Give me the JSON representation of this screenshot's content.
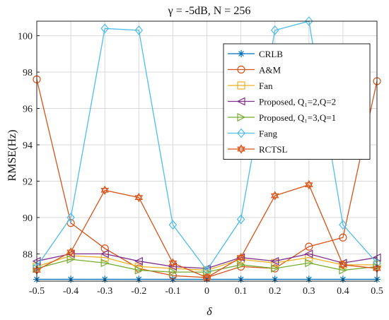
{
  "chart_data": {
    "type": "line",
    "title": "γ = -5dB, N = 256",
    "xlabel": "δ",
    "ylabel": "RMSE(Hz)",
    "x": [
      -0.5,
      -0.4,
      -0.3,
      -0.2,
      -0.1,
      0,
      0.1,
      0.2,
      0.3,
      0.4,
      0.5
    ],
    "xlim": [
      -0.5,
      0.5
    ],
    "ylim": [
      86.5,
      100.8
    ],
    "x_ticks": [
      "-0.5",
      "-0.4",
      "-0.3",
      "-0.2",
      "-0.1",
      "0",
      "0.1",
      "0.2",
      "0.3",
      "0.4",
      "0.5"
    ],
    "y_ticks": [
      88,
      90,
      92,
      94,
      96,
      98,
      100
    ],
    "grid": true,
    "legend_position": "top-right",
    "series": [
      {
        "name": "CRLB",
        "color": "#0072BD",
        "marker": "asterisk",
        "values": [
          86.6,
          86.6,
          86.6,
          86.6,
          86.6,
          86.6,
          86.6,
          86.6,
          86.6,
          86.6,
          86.6
        ]
      },
      {
        "name": "A&M",
        "color": "#D95319",
        "marker": "circle",
        "values": [
          97.6,
          89.7,
          88.3,
          87.2,
          86.8,
          86.7,
          87.3,
          87.2,
          88.4,
          88.9,
          97.5
        ]
      },
      {
        "name": "Fan",
        "color": "#EDB120",
        "marker": "square",
        "values": [
          87.3,
          87.9,
          87.8,
          87.3,
          87.2,
          87.1,
          87.7,
          87.5,
          87.8,
          87.4,
          87.4
        ]
      },
      {
        "name": "Proposed, Q₁=2,Q=2",
        "color": "#7E2F8E",
        "marker": "triangle-left",
        "values": [
          87.6,
          88.0,
          88.0,
          87.6,
          87.3,
          87.2,
          87.8,
          87.6,
          88.0,
          87.5,
          87.8
        ]
      },
      {
        "name": "Proposed, Q₁=3,Q=1",
        "color": "#77AC30",
        "marker": "triangle-right",
        "values": [
          87.2,
          87.7,
          87.5,
          87.1,
          87.0,
          87.0,
          87.4,
          87.2,
          87.5,
          87.1,
          87.3
        ]
      },
      {
        "name": "Fang",
        "color": "#4DBEEE",
        "marker": "diamond",
        "values": [
          87.3,
          90.0,
          100.4,
          100.3,
          89.6,
          87.1,
          89.9,
          100.3,
          100.8,
          89.6,
          87.5
        ]
      },
      {
        "name": "RCTSL",
        "color": "#D95319",
        "marker": "hexagram",
        "values": [
          87.1,
          88.1,
          91.5,
          91.1,
          87.5,
          86.7,
          87.8,
          91.2,
          91.8,
          87.4,
          87.2
        ]
      }
    ]
  }
}
